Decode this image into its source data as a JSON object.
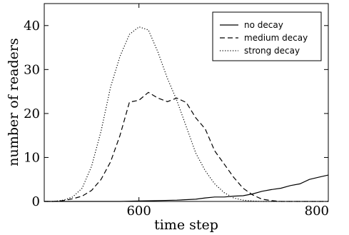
{
  "chart_data": {
    "type": "line",
    "xlabel": "time step",
    "ylabel": "number of readers",
    "xlim": [
      500,
      800
    ],
    "ylim": [
      0,
      45
    ],
    "x_ticks": [
      600,
      800
    ],
    "y_ticks": [
      0,
      10,
      20,
      30,
      40
    ],
    "grid": false,
    "legend_position": "top-right",
    "series": [
      {
        "name": "no decay",
        "style": "solid",
        "color": "#000000",
        "x": [
          500,
          520,
          540,
          560,
          580,
          600,
          620,
          640,
          660,
          670,
          680,
          690,
          700,
          710,
          720,
          730,
          740,
          750,
          760,
          770,
          780,
          790,
          800
        ],
        "y": [
          0,
          0,
          0,
          0,
          0,
          0.1,
          0.2,
          0.3,
          0.5,
          0.8,
          1.0,
          1.0,
          1.2,
          1.3,
          1.7,
          2.3,
          2.7,
          3.0,
          3.6,
          4.0,
          5.0,
          5.5,
          6.0
        ]
      },
      {
        "name": "medium decay",
        "style": "dashed",
        "color": "#000000",
        "x": [
          500,
          510,
          520,
          530,
          540,
          550,
          560,
          570,
          580,
          590,
          600,
          610,
          620,
          630,
          640,
          650,
          660,
          670,
          680,
          690,
          700,
          710,
          720,
          730,
          740,
          750,
          760,
          770,
          780,
          790,
          800
        ],
        "y": [
          0,
          0,
          0.2,
          0.6,
          1.2,
          2.5,
          5,
          9,
          15,
          22.6,
          23,
          24.8,
          23.5,
          22.7,
          23.5,
          22.5,
          19,
          16.5,
          11.5,
          8.5,
          5.5,
          3,
          1.5,
          0.5,
          0.2,
          0,
          0,
          0,
          0,
          0,
          0
        ]
      },
      {
        "name": "strong decay",
        "style": "dotted",
        "color": "#000000",
        "x": [
          500,
          510,
          520,
          530,
          540,
          550,
          560,
          570,
          580,
          590,
          600,
          610,
          620,
          630,
          640,
          650,
          660,
          670,
          680,
          690,
          700,
          710,
          720,
          730,
          740,
          750,
          760,
          770,
          780,
          790,
          800
        ],
        "y": [
          0,
          0,
          0.3,
          1,
          3,
          8,
          16,
          26,
          33,
          38,
          39.7,
          39,
          34,
          28,
          23,
          17,
          11,
          7,
          4,
          2,
          0.8,
          0.3,
          0.1,
          0,
          0,
          0,
          0,
          0,
          0,
          0,
          0
        ]
      }
    ]
  }
}
